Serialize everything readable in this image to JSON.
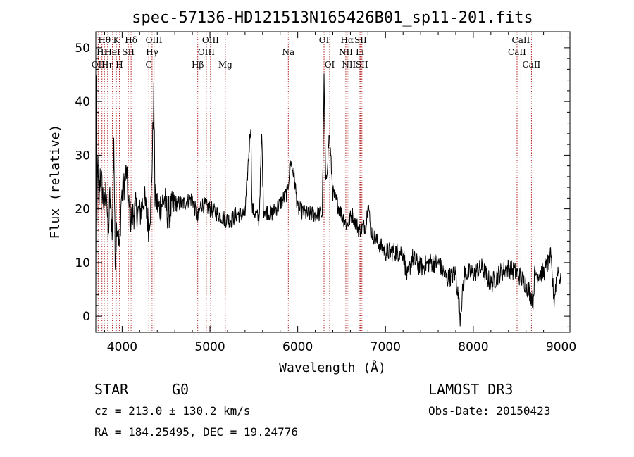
{
  "chart_data": {
    "type": "line",
    "title": "spec-57136-HD121513N165426B01_sp11-201.fits",
    "xlabel": "Wavelength (Å)",
    "ylabel": "Flux (relative)",
    "xlim": [
      3700,
      9100
    ],
    "ylim": [
      -3,
      53
    ],
    "xticks": [
      4000,
      5000,
      6000,
      7000,
      8000,
      9000
    ],
    "yticks": [
      0,
      10,
      20,
      30,
      40,
      50
    ],
    "line_color": "#000000",
    "marker_color": "#b22222",
    "spectrum_anchors": [
      [
        3700,
        0
      ],
      [
        3705,
        44
      ],
      [
        3712,
        15
      ],
      [
        3720,
        30
      ],
      [
        3735,
        20
      ],
      [
        3750,
        27
      ],
      [
        3770,
        24
      ],
      [
        3800,
        20
      ],
      [
        3820,
        25
      ],
      [
        3840,
        14
      ],
      [
        3860,
        22
      ],
      [
        3890,
        16
      ],
      [
        3905,
        34
      ],
      [
        3920,
        10
      ],
      [
        3940,
        18
      ],
      [
        3970,
        12
      ],
      [
        3990,
        22
      ],
      [
        4020,
        24
      ],
      [
        4050,
        27
      ],
      [
        4070,
        21
      ],
      [
        4100,
        18
      ],
      [
        4150,
        20
      ],
      [
        4200,
        19
      ],
      [
        4250,
        22
      ],
      [
        4300,
        17
      ],
      [
        4330,
        21
      ],
      [
        4360,
        41
      ],
      [
        4375,
        22
      ],
      [
        4420,
        20
      ],
      [
        4480,
        22
      ],
      [
        4520,
        19
      ],
      [
        4600,
        21
      ],
      [
        4700,
        21
      ],
      [
        4800,
        22
      ],
      [
        4860,
        18
      ],
      [
        4900,
        21
      ],
      [
        5000,
        20
      ],
      [
        5100,
        19
      ],
      [
        5180,
        18
      ],
      [
        5250,
        18
      ],
      [
        5300,
        19
      ],
      [
        5400,
        19
      ],
      [
        5465,
        36
      ],
      [
        5480,
        20
      ],
      [
        5560,
        18
      ],
      [
        5590,
        34
      ],
      [
        5610,
        20
      ],
      [
        5700,
        19
      ],
      [
        5800,
        21
      ],
      [
        5880,
        23
      ],
      [
        5920,
        29
      ],
      [
        5960,
        26
      ],
      [
        6000,
        20
      ],
      [
        6100,
        19
      ],
      [
        6200,
        19
      ],
      [
        6280,
        19
      ],
      [
        6300,
        44
      ],
      [
        6320,
        24
      ],
      [
        6360,
        34
      ],
      [
        6400,
        23
      ],
      [
        6500,
        19
      ],
      [
        6560,
        17
      ],
      [
        6620,
        19
      ],
      [
        6700,
        16
      ],
      [
        6780,
        17
      ],
      [
        6800,
        22
      ],
      [
        6830,
        16
      ],
      [
        6900,
        14
      ],
      [
        7000,
        12
      ],
      [
        7100,
        12
      ],
      [
        7200,
        12
      ],
      [
        7250,
        7
      ],
      [
        7300,
        11
      ],
      [
        7400,
        9
      ],
      [
        7500,
        10
      ],
      [
        7600,
        10
      ],
      [
        7700,
        7
      ],
      [
        7800,
        8
      ],
      [
        7850,
        0
      ],
      [
        7900,
        8
      ],
      [
        8000,
        8
      ],
      [
        8100,
        9
      ],
      [
        8200,
        6
      ],
      [
        8300,
        8
      ],
      [
        8400,
        9
      ],
      [
        8500,
        8
      ],
      [
        8600,
        6
      ],
      [
        8680,
        3
      ],
      [
        8700,
        8
      ],
      [
        8800,
        8
      ],
      [
        8880,
        11
      ],
      [
        8920,
        3
      ],
      [
        8960,
        9
      ],
      [
        9000,
        6
      ]
    ],
    "lines": [
      {
        "label": "OII",
        "x": 3727,
        "row": 3
      },
      {
        "label": "Hθ",
        "x": 3798,
        "row": 1
      },
      {
        "label": "HI",
        "x": 3770,
        "row": 2
      },
      {
        "label": "Hη",
        "x": 3835,
        "row": 3
      },
      {
        "label": "HeI",
        "x": 3889,
        "row": 2
      },
      {
        "label": "K",
        "x": 3934,
        "row": 1
      },
      {
        "label": "H",
        "x": 3969,
        "row": 3
      },
      {
        "label": "SII",
        "x": 4070,
        "row": 2
      },
      {
        "label": "Hδ",
        "x": 4102,
        "row": 1
      },
      {
        "label": "G",
        "x": 4304,
        "row": 3
      },
      {
        "label": "Hγ",
        "x": 4341,
        "row": 2
      },
      {
        "label": "OIII",
        "x": 4363,
        "row": 1
      },
      {
        "label": "Hβ",
        "x": 4861,
        "row": 3
      },
      {
        "label": "OIII",
        "x": 4959,
        "row": 2
      },
      {
        "label": "OIII",
        "x": 5007,
        "row": 1
      },
      {
        "label": "Mg",
        "x": 5175,
        "row": 3
      },
      {
        "label": "Na",
        "x": 5893,
        "row": 2
      },
      {
        "label": "OI",
        "x": 6300,
        "row": 1
      },
      {
        "label": "OI",
        "x": 6364,
        "row": 3
      },
      {
        "label": "NII",
        "x": 6548,
        "row": 2
      },
      {
        "label": "Hα",
        "x": 6563,
        "row": 1
      },
      {
        "label": "NII",
        "x": 6583,
        "row": 3
      },
      {
        "label": "Li",
        "x": 6708,
        "row": 2
      },
      {
        "label": "SII",
        "x": 6716,
        "row": 1
      },
      {
        "label": "SII",
        "x": 6731,
        "row": 3
      },
      {
        "label": "CaII",
        "x": 8498,
        "row": 2
      },
      {
        "label": "CaII",
        "x": 8542,
        "row": 1
      },
      {
        "label": "CaII",
        "x": 8662,
        "row": 3
      }
    ]
  },
  "info": {
    "class_text": "STAR",
    "subclass": "G0",
    "survey": "LAMOST DR3",
    "cz": "cz = 213.0 ± 130.2 km/s",
    "obs_date": "Obs-Date: 20150423",
    "coords": "RA = 184.25495, DEC =  19.24776"
  }
}
